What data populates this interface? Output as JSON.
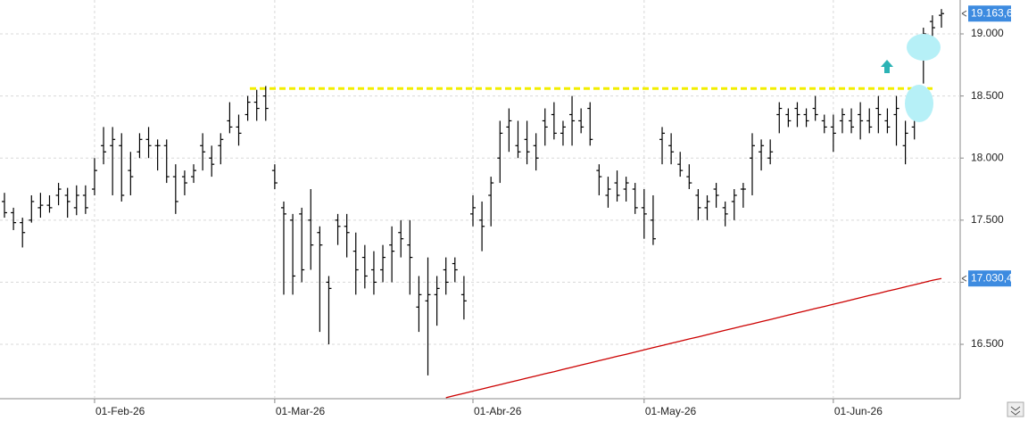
{
  "chart_data": {
    "type": "ohlc",
    "categories": [
      null,
      null,
      null,
      null,
      null,
      null,
      null,
      null,
      null,
      null,
      "01-Feb-26",
      null,
      null,
      null,
      null,
      null,
      null,
      null,
      null,
      null,
      null,
      null,
      null,
      null,
      null,
      null,
      null,
      null,
      null,
      null,
      "01-Mar-26",
      null,
      null,
      null,
      null,
      null,
      null,
      null,
      null,
      null,
      null,
      null,
      null,
      null,
      null,
      null,
      null,
      null,
      null,
      null,
      null,
      null,
      "01-Abr-26",
      null,
      null,
      null,
      null,
      null,
      null,
      null,
      null,
      null,
      null,
      null,
      null,
      null,
      null,
      null,
      null,
      null,
      null,
      "01-May-26",
      null,
      null,
      null,
      null,
      null,
      null,
      null,
      null,
      null,
      null,
      null,
      null,
      null,
      null,
      null,
      null,
      null,
      null,
      null,
      null,
      "01-Jun-26",
      null,
      null,
      null,
      null,
      null,
      null,
      null,
      null,
      null,
      null,
      null,
      null
    ],
    "ohlc": [
      [
        17650,
        17720,
        17520,
        17560
      ],
      [
        17560,
        17600,
        17420,
        17480
      ],
      [
        17480,
        17520,
        17280,
        17400
      ],
      [
        17500,
        17700,
        17480,
        17650
      ],
      [
        17600,
        17720,
        17520,
        17620
      ],
      [
        17620,
        17700,
        17560,
        17600
      ],
      [
        17700,
        17800,
        17620,
        17750
      ],
      [
        17700,
        17760,
        17520,
        17650
      ],
      [
        17600,
        17780,
        17540,
        17700
      ],
      [
        17700,
        17780,
        17550,
        17600
      ],
      [
        17750,
        18000,
        17700,
        17900
      ],
      [
        18100,
        18250,
        17950,
        18050
      ],
      [
        18100,
        18250,
        17700,
        18150
      ],
      [
        18100,
        18200,
        17650,
        17700
      ],
      [
        17900,
        18050,
        17700,
        17850
      ],
      [
        18050,
        18200,
        18000,
        18150
      ],
      [
        18150,
        18250,
        18000,
        18100
      ],
      [
        18100,
        18150,
        17900,
        18100
      ],
      [
        18100,
        18150,
        17800,
        17850
      ],
      [
        17850,
        17950,
        17550,
        17650
      ],
      [
        17850,
        17900,
        17700,
        17800
      ],
      [
        17850,
        17950,
        17800,
        17900
      ],
      [
        18100,
        18200,
        17900,
        18050
      ],
      [
        18000,
        18100,
        17850,
        17950
      ],
      [
        18100,
        18200,
        17950,
        18150
      ],
      [
        18300,
        18450,
        18200,
        18250
      ],
      [
        18250,
        18350,
        18100,
        18200
      ],
      [
        18350,
        18500,
        18300,
        18450
      ],
      [
        18450,
        18550,
        18300,
        18400
      ],
      [
        18500,
        18580,
        18300,
        18400
      ],
      [
        17900,
        17950,
        17750,
        17800
      ],
      [
        17600,
        17650,
        16900,
        17550
      ],
      [
        17500,
        17550,
        16900,
        17050
      ],
      [
        17550,
        17600,
        17000,
        17100
      ],
      [
        17500,
        17750,
        17100,
        17300
      ],
      [
        17400,
        17450,
        16600,
        17300
      ],
      [
        17000,
        17050,
        16500,
        16950
      ],
      [
        17500,
        17550,
        17300,
        17450
      ],
      [
        17450,
        17550,
        17200,
        17400
      ],
      [
        17250,
        17400,
        16900,
        17100
      ],
      [
        17200,
        17300,
        16950,
        17050
      ],
      [
        17100,
        17250,
        16900,
        17000
      ],
      [
        17100,
        17300,
        17000,
        17200
      ],
      [
        17300,
        17450,
        17000,
        17250
      ],
      [
        17400,
        17500,
        17200,
        17350
      ],
      [
        17300,
        17500,
        16900,
        17200
      ],
      [
        16800,
        17050,
        16600,
        16900
      ],
      [
        16850,
        17200,
        16250,
        16900
      ],
      [
        16900,
        17050,
        16650,
        16950
      ],
      [
        17100,
        17200,
        16900,
        17000
      ],
      [
        17150,
        17200,
        17000,
        17100
      ],
      [
        16900,
        17050,
        16700,
        16850
      ],
      [
        17550,
        17700,
        17450,
        17600
      ],
      [
        17500,
        17650,
        17250,
        17450
      ],
      [
        17700,
        17850,
        17450,
        17800
      ],
      [
        18000,
        18300,
        17800,
        18200
      ],
      [
        18250,
        18400,
        18050,
        18300
      ],
      [
        18100,
        18300,
        18000,
        18050
      ],
      [
        18150,
        18300,
        17950,
        18050
      ],
      [
        18100,
        18200,
        17900,
        18000
      ],
      [
        18300,
        18400,
        18100,
        18250
      ],
      [
        18350,
        18450,
        18150,
        18200
      ],
      [
        18200,
        18300,
        18100,
        18250
      ],
      [
        18350,
        18500,
        18100,
        18300
      ],
      [
        18300,
        18400,
        18200,
        18250
      ],
      [
        18400,
        18450,
        18100,
        18150
      ],
      [
        17900,
        17950,
        17700,
        17850
      ],
      [
        17700,
        17850,
        17600,
        17750
      ],
      [
        17800,
        17900,
        17650,
        17700
      ],
      [
        17750,
        17850,
        17650,
        17800
      ],
      [
        17750,
        17800,
        17550,
        17600
      ],
      [
        17600,
        17750,
        17350,
        17550
      ],
      [
        17500,
        17700,
        17300,
        17350
      ],
      [
        18150,
        18250,
        17950,
        18200
      ],
      [
        18100,
        18200,
        17950,
        18050
      ],
      [
        17950,
        18050,
        17850,
        17900
      ],
      [
        17850,
        17950,
        17750,
        17800
      ],
      [
        17700,
        17750,
        17500,
        17600
      ],
      [
        17600,
        17700,
        17500,
        17650
      ],
      [
        17750,
        17800,
        17600,
        17700
      ],
      [
        17600,
        17650,
        17450,
        17550
      ],
      [
        17650,
        17750,
        17500,
        17700
      ],
      [
        17750,
        17800,
        17600,
        17750
      ],
      [
        18000,
        18200,
        17700,
        18100
      ],
      [
        18050,
        18150,
        17900,
        18100
      ],
      [
        18000,
        18150,
        17950,
        18050
      ],
      [
        18350,
        18450,
        18200,
        18400
      ],
      [
        18350,
        18400,
        18250,
        18300
      ],
      [
        18400,
        18450,
        18250,
        18350
      ],
      [
        18350,
        18400,
        18250,
        18300
      ],
      [
        18400,
        18500,
        18300,
        18350
      ],
      [
        18300,
        18350,
        18200,
        18250
      ],
      [
        18250,
        18350,
        18050,
        18200
      ],
      [
        18300,
        18400,
        18200,
        18350
      ],
      [
        18300,
        18400,
        18200,
        18250
      ],
      [
        18350,
        18450,
        18150,
        18300
      ],
      [
        18300,
        18400,
        18200,
        18250
      ],
      [
        18400,
        18500,
        18200,
        18350
      ],
      [
        18300,
        18400,
        18200,
        18250
      ],
      [
        18350,
        18500,
        18100,
        18400
      ],
      [
        18100,
        18300,
        17950,
        18200
      ],
      [
        18250,
        18550,
        18150,
        18500
      ],
      [
        18800,
        19050,
        18600,
        19000
      ],
      [
        19100,
        19150,
        18900,
        19050
      ],
      [
        19150,
        19200,
        19050,
        19163.6
      ]
    ],
    "bar_color": "#000000",
    "ma": {
      "color": "#cc0000",
      "values": [
        null,
        null,
        null,
        null,
        null,
        null,
        null,
        null,
        null,
        null,
        null,
        null,
        null,
        null,
        null,
        null,
        null,
        null,
        null,
        null,
        null,
        null,
        null,
        null,
        null,
        null,
        null,
        null,
        null,
        null,
        null,
        null,
        null,
        null,
        null,
        null,
        null,
        null,
        null,
        null,
        null,
        null,
        null,
        null,
        null,
        null,
        null,
        null,
        null,
        16070,
        16088,
        16105,
        16123,
        16140,
        16158,
        16175,
        16193,
        16210,
        16228,
        16245,
        16263,
        16280,
        16298,
        16315,
        16333,
        16350,
        16368,
        16385,
        16403,
        16420,
        16438,
        16455,
        16473,
        16490,
        16508,
        16525,
        16543,
        16560,
        16578,
        16595,
        16613,
        16630,
        16648,
        16665,
        16683,
        16700,
        16718,
        16735,
        16753,
        16770,
        16788,
        16805,
        16823,
        16840,
        16858,
        16875,
        16893,
        16910,
        16928,
        16945,
        16963,
        16980,
        16998,
        17015,
        17030.4
      ]
    },
    "level": {
      "value": 18560,
      "color": "#f2ee00"
    },
    "price_tags": [
      {
        "value": 19163.6,
        "label": "19.163,6",
        "color": "#3d8be0"
      },
      {
        "value": 17030.4,
        "label": "17.030,4",
        "color": "#3d8be0"
      }
    ],
    "ylim": [
      16062,
      19273
    ],
    "yticks": [
      {
        "value": 16500,
        "label": "16.500"
      },
      {
        "value": 17000,
        "label": "17.000"
      },
      {
        "value": 17500,
        "label": "17.500"
      },
      {
        "value": 18000,
        "label": "18.000"
      },
      {
        "value": 18500,
        "label": "18.500"
      },
      {
        "value": 19000,
        "label": "19.000"
      }
    ],
    "grid": true
  }
}
